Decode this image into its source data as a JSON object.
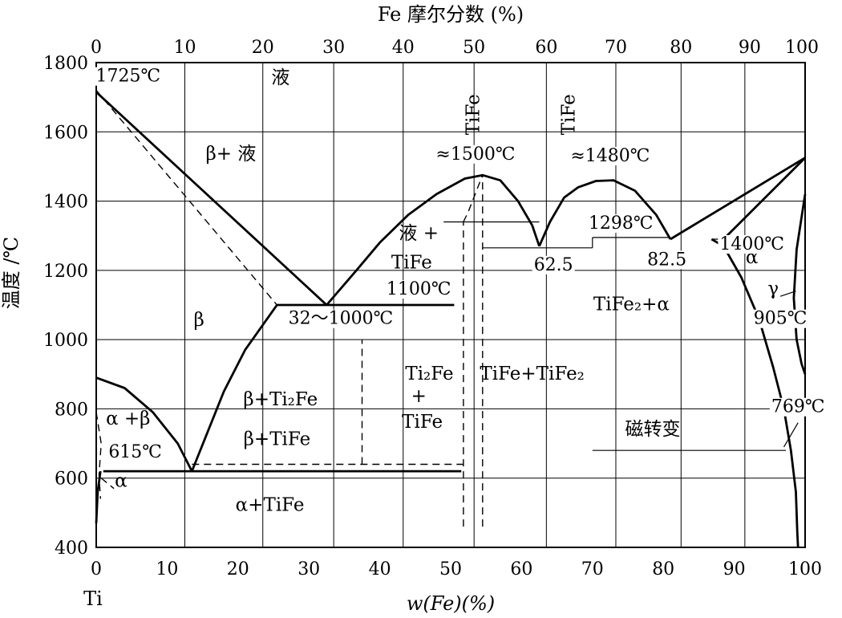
{
  "chart_data": {
    "type": "line",
    "title": "",
    "top_axis_label": "Fe 摩尔分数 (%)",
    "xlabel": "w(Fe)(%)",
    "ylabel": "温度 /℃",
    "bottom_left_label": "Ti",
    "xlim": [
      0,
      100
    ],
    "ylim": [
      400,
      1800
    ],
    "grid": true,
    "x_ticks": [
      "0",
      "10",
      "20",
      "30",
      "40",
      "50",
      "60",
      "70",
      "80",
      "90",
      "100"
    ],
    "y_ticks": [
      "400",
      "600",
      "800",
      "1000",
      "1200",
      "1400",
      "1600",
      "1800"
    ],
    "top_ticks": [
      {
        "label": "0",
        "x": 0
      },
      {
        "label": "10",
        "x": 12.5
      },
      {
        "label": "20",
        "x": 23.5
      },
      {
        "label": "30",
        "x": 33.5
      },
      {
        "label": "40",
        "x": 43.3
      },
      {
        "label": "50",
        "x": 53.3
      },
      {
        "label": "60",
        "x": 63.5
      },
      {
        "label": "70",
        "x": 73.3
      },
      {
        "label": "80",
        "x": 82.5
      },
      {
        "label": "90",
        "x": 91.5
      },
      {
        "label": "100",
        "x": 100
      }
    ],
    "top_grid_x": [
      12.5,
      23.5,
      33.5,
      43.3,
      53.3,
      63.5,
      73.3,
      82.5,
      91.5
    ],
    "regions": [
      {
        "text": "液",
        "x": 26,
        "y": 1740
      },
      {
        "text": "β+ 液",
        "x": 19,
        "y": 1520
      },
      {
        "text": "β",
        "x": 14.5,
        "y": 1040
      },
      {
        "text": "液 +",
        "x": 45.5,
        "y": 1290
      },
      {
        "text": "TiFe",
        "x": 44.5,
        "y": 1205
      },
      {
        "text": "β+Ti₂Fe",
        "x": 26,
        "y": 810
      },
      {
        "text": "β+TiFe",
        "x": 25.5,
        "y": 695
      },
      {
        "text": "Ti₂Fe",
        "x": 47,
        "y": 885
      },
      {
        "text": "+",
        "x": 45.5,
        "y": 820
      },
      {
        "text": "TiFe",
        "x": 46,
        "y": 745
      },
      {
        "text": "TiFe+TiFe₂",
        "x": 61.5,
        "y": 885
      },
      {
        "text": "TiFe₂+α",
        "x": 75.5,
        "y": 1085
      },
      {
        "text": "α +β",
        "x": 4.5,
        "y": 755
      },
      {
        "text": "α",
        "x": 3.5,
        "y": 575
      },
      {
        "text": "α+TiFe",
        "x": 24.5,
        "y": 505
      },
      {
        "text": "α",
        "x": 92.5,
        "y": 1220
      },
      {
        "text": "γ",
        "x": 95.5,
        "y": 1130
      },
      {
        "text": "磁转变",
        "x": 78.5,
        "y": 725
      }
    ],
    "vertical_labels": [
      {
        "text": "TiFe",
        "x": 54.0,
        "y": 1650
      },
      {
        "text": "TiFe",
        "x": 67.5,
        "y": 1650
      }
    ],
    "temperature_labels": [
      {
        "text": "1725℃",
        "x": 4.5,
        "y": 1745
      },
      {
        "text": "≈1500℃",
        "x": 53.5,
        "y": 1520
      },
      {
        "text": "≈1480℃",
        "x": 72.5,
        "y": 1515
      },
      {
        "text": "1298℃",
        "x": 74,
        "y": 1320
      },
      {
        "text": "1400℃",
        "x": 92.5,
        "y": 1260
      },
      {
        "text": "62.5",
        "x": 64.5,
        "y": 1200
      },
      {
        "text": "82.5",
        "x": 80.5,
        "y": 1215
      },
      {
        "text": "1100℃",
        "x": 45.5,
        "y": 1130
      },
      {
        "text": "32～1000℃",
        "x": 34.5,
        "y": 1045
      },
      {
        "text": "905℃",
        "x": 96.5,
        "y": 1045
      },
      {
        "text": "769℃",
        "x": 99.0,
        "y": 790
      },
      {
        "text": "615℃",
        "x": 5.5,
        "y": 660
      }
    ],
    "curves": [
      {
        "style": "solid",
        "points": [
          [
            0,
            1715
          ],
          [
            32.5,
            1100
          ]
        ]
      },
      {
        "style": "solid",
        "points": [
          [
            25.5,
            1100
          ],
          [
            50.5,
            1100
          ]
        ]
      },
      {
        "style": "solid",
        "points": [
          [
            13.5,
            620
          ],
          [
            18,
            850
          ],
          [
            21,
            970
          ],
          [
            25.5,
            1100
          ]
        ]
      },
      {
        "style": "solid",
        "points": [
          [
            32.5,
            1100
          ],
          [
            36.7,
            1200
          ],
          [
            40,
            1280
          ],
          [
            44,
            1360
          ],
          [
            48,
            1420
          ],
          [
            52,
            1465
          ],
          [
            54.5,
            1475
          ],
          [
            57,
            1460
          ],
          [
            59.5,
            1400
          ],
          [
            61.5,
            1330
          ],
          [
            62.5,
            1270
          ]
        ]
      },
      {
        "style": "solid",
        "points": [
          [
            62.5,
            1270
          ],
          [
            64,
            1340
          ],
          [
            66,
            1410
          ],
          [
            68,
            1440
          ],
          [
            70.5,
            1458
          ],
          [
            73,
            1460
          ],
          [
            76,
            1430
          ],
          [
            79,
            1360
          ],
          [
            81,
            1290
          ]
        ]
      },
      {
        "style": "solid",
        "points": [
          [
            81,
            1290
          ],
          [
            100,
            1525
          ]
        ]
      },
      {
        "style": "solid",
        "points": [
          [
            100,
            1525
          ],
          [
            88.5,
            1290
          ]
        ]
      },
      {
        "style": "solid",
        "points": [
          [
            0,
            890
          ],
          [
            4,
            860
          ],
          [
            8,
            790
          ],
          [
            11.5,
            700
          ],
          [
            13.5,
            620
          ]
        ]
      },
      {
        "style": "solid",
        "points": [
          [
            1,
            620
          ],
          [
            51.5,
            620
          ]
        ]
      },
      {
        "style": "solid",
        "points": [
          [
            86.8,
            1290
          ],
          [
            88.5,
            1270
          ],
          [
            91,
            1180
          ],
          [
            93.5,
            1060
          ],
          [
            95.5,
            920
          ],
          [
            97,
            800
          ],
          [
            98,
            680
          ],
          [
            98.7,
            560
          ],
          [
            98.9,
            440
          ],
          [
            99,
            400
          ]
        ]
      },
      {
        "style": "solid",
        "points": [
          [
            100,
            1420
          ],
          [
            98.8,
            1260
          ],
          [
            98.4,
            1120
          ],
          [
            98.8,
            1000
          ],
          [
            99.5,
            930
          ],
          [
            100,
            900
          ]
        ]
      },
      {
        "style": "solid",
        "points": [
          [
            0.6,
            620
          ],
          [
            0.2,
            560
          ],
          [
            0,
            470
          ]
        ]
      },
      {
        "style": "thin",
        "points": [
          [
            49,
            1340
          ],
          [
            62.5,
            1340
          ]
        ]
      },
      {
        "style": "thin",
        "points": [
          [
            54.5,
            1265
          ],
          [
            70,
            1265
          ]
        ]
      },
      {
        "style": "thin",
        "points": [
          [
            70,
            1295
          ],
          [
            81,
            1295
          ]
        ]
      },
      {
        "style": "thin",
        "points": [
          [
            87,
            1290
          ],
          [
            89,
            1290
          ]
        ]
      },
      {
        "style": "thin",
        "points": [
          [
            70,
            1265
          ],
          [
            70,
            1295
          ]
        ]
      },
      {
        "style": "thin",
        "points": [
          [
            70,
            680
          ],
          [
            97.3,
            680
          ]
        ]
      },
      {
        "style": "thin",
        "points": [
          [
            97,
            690
          ],
          [
            99,
            760
          ]
        ]
      },
      {
        "style": "thin",
        "points": [
          [
            96.5,
            1125
          ],
          [
            98.7,
            1140
          ]
        ]
      },
      {
        "style": "dash",
        "points": [
          [
            0,
            1720
          ],
          [
            25.5,
            1100
          ]
        ]
      },
      {
        "style": "dash",
        "points": [
          [
            37.5,
            640
          ],
          [
            37.5,
            1000
          ]
        ]
      },
      {
        "style": "dash",
        "points": [
          [
            13.5,
            640
          ],
          [
            51.8,
            640
          ]
        ]
      },
      {
        "style": "dash",
        "points": [
          [
            51.8,
            460
          ],
          [
            51.8,
            1340
          ]
        ]
      },
      {
        "style": "dash",
        "points": [
          [
            51.8,
            1340
          ],
          [
            52.5,
            1370
          ],
          [
            54.5,
            1475
          ]
        ]
      },
      {
        "style": "dash",
        "points": [
          [
            54.5,
            460
          ],
          [
            54.5,
            1475
          ]
        ]
      },
      {
        "style": "dash",
        "points": [
          [
            0,
            790
          ],
          [
            0.7,
            700
          ],
          [
            0.4,
            610
          ],
          [
            0.6,
            540
          ]
        ]
      },
      {
        "style": "dash",
        "points": [
          [
            0.7,
            600
          ],
          [
            2.5,
            570
          ]
        ]
      }
    ]
  }
}
